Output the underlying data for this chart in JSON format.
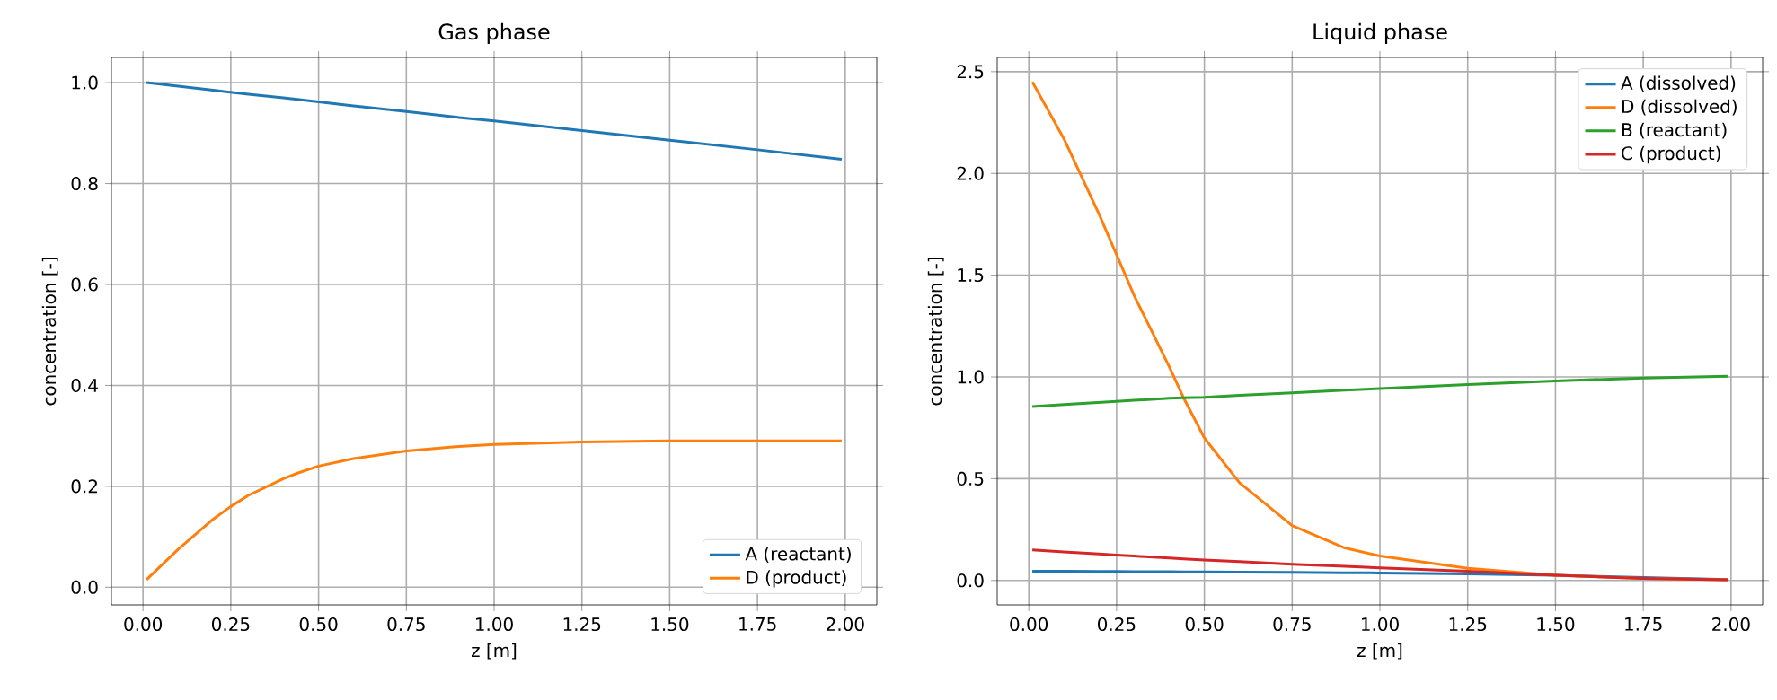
{
  "chart_data": [
    {
      "type": "line",
      "title": "Gas phase",
      "xlabel": "z [m]",
      "ylabel": "concentration [-]",
      "x": [
        0.01,
        0.1,
        0.2,
        0.25,
        0.3,
        0.4,
        0.44,
        0.5,
        0.6,
        0.75,
        0.9,
        1.0,
        1.25,
        1.5,
        1.75,
        1.99
      ],
      "series": [
        {
          "name": "A (reactant)",
          "color": "#1f77b4",
          "values": [
            1.0,
            0.993,
            0.985,
            0.981,
            0.977,
            0.97,
            0.967,
            0.962,
            0.954,
            0.943,
            0.931,
            0.924,
            0.905,
            0.886,
            0.867,
            0.848
          ]
        },
        {
          "name": "D (product)",
          "color": "#ff7f0e",
          "values": [
            0.015,
            0.075,
            0.135,
            0.16,
            0.182,
            0.215,
            0.226,
            0.24,
            0.255,
            0.27,
            0.279,
            0.283,
            0.288,
            0.29,
            0.29,
            0.29
          ]
        }
      ],
      "xlim": [
        -0.09,
        2.09
      ],
      "ylim": [
        -0.035,
        1.05
      ],
      "xticks": [
        {
          "value": 0,
          "label": "0.00"
        },
        {
          "value": 0.25,
          "label": "0.25"
        },
        {
          "value": 0.5,
          "label": "0.50"
        },
        {
          "value": 0.75,
          "label": "0.75"
        },
        {
          "value": 1,
          "label": "1.00"
        },
        {
          "value": 1.25,
          "label": "1.25"
        },
        {
          "value": 1.5,
          "label": "1.50"
        },
        {
          "value": 1.75,
          "label": "1.75"
        },
        {
          "value": 2,
          "label": "2.00"
        }
      ],
      "yticks": [
        {
          "value": 0,
          "label": "0.0"
        },
        0.2,
        0.4,
        0.6,
        0.8,
        {
          "value": 1,
          "label": "1.0"
        }
      ],
      "grid": true,
      "legend": "bottom right"
    },
    {
      "type": "line",
      "title": "Liquid phase",
      "xlabel": "z [m]",
      "ylabel": "concentration [-]",
      "x": [
        0.01,
        0.1,
        0.2,
        0.25,
        0.3,
        0.4,
        0.44,
        0.5,
        0.6,
        0.75,
        0.9,
        1.0,
        1.25,
        1.5,
        1.75,
        1.99
      ],
      "series": [
        {
          "name": "A (dissolved)",
          "color": "#1f77b4",
          "values": [
            0.045,
            0.045,
            0.044,
            0.044,
            0.043,
            0.043,
            0.042,
            0.042,
            0.041,
            0.04,
            0.038,
            0.037,
            0.032,
            0.025,
            0.015,
            0.005
          ]
        },
        {
          "name": "D (dissolved)",
          "color": "#ff7f0e",
          "values": [
            2.45,
            2.17,
            1.8,
            1.6,
            1.4,
            1.05,
            0.9,
            0.7,
            0.48,
            0.27,
            0.16,
            0.12,
            0.06,
            0.025,
            0.01,
            0.004
          ]
        },
        {
          "name": "B (reactant)",
          "color": "#2ca02c",
          "values": [
            0.855,
            0.865,
            0.875,
            0.88,
            0.885,
            0.895,
            0.898,
            0.9,
            0.91,
            0.922,
            0.935,
            0.943,
            0.963,
            0.98,
            0.995,
            1.003
          ]
        },
        {
          "name": "C (product)",
          "color": "#d62728",
          "values": [
            0.15,
            0.14,
            0.13,
            0.125,
            0.12,
            0.11,
            0.106,
            0.1,
            0.093,
            0.08,
            0.07,
            0.062,
            0.045,
            0.025,
            0.01,
            0.003
          ]
        }
      ],
      "xlim": [
        -0.09,
        2.09
      ],
      "ylim": [
        -0.12,
        2.57
      ],
      "xticks": [
        {
          "value": 0,
          "label": "0.00"
        },
        {
          "value": 0.25,
          "label": "0.25"
        },
        {
          "value": 0.5,
          "label": "0.50"
        },
        {
          "value": 0.75,
          "label": "0.75"
        },
        {
          "value": 1,
          "label": "1.00"
        },
        {
          "value": 1.25,
          "label": "1.25"
        },
        {
          "value": 1.5,
          "label": "1.50"
        },
        {
          "value": 1.75,
          "label": "1.75"
        },
        {
          "value": 2,
          "label": "2.00"
        }
      ],
      "yticks": [
        {
          "value": 0,
          "label": "0.0"
        },
        0.5,
        {
          "value": 1,
          "label": "1.0"
        },
        1.5,
        {
          "value": 2,
          "label": "2.0"
        },
        2.5
      ],
      "grid": true,
      "legend": "top right"
    }
  ]
}
